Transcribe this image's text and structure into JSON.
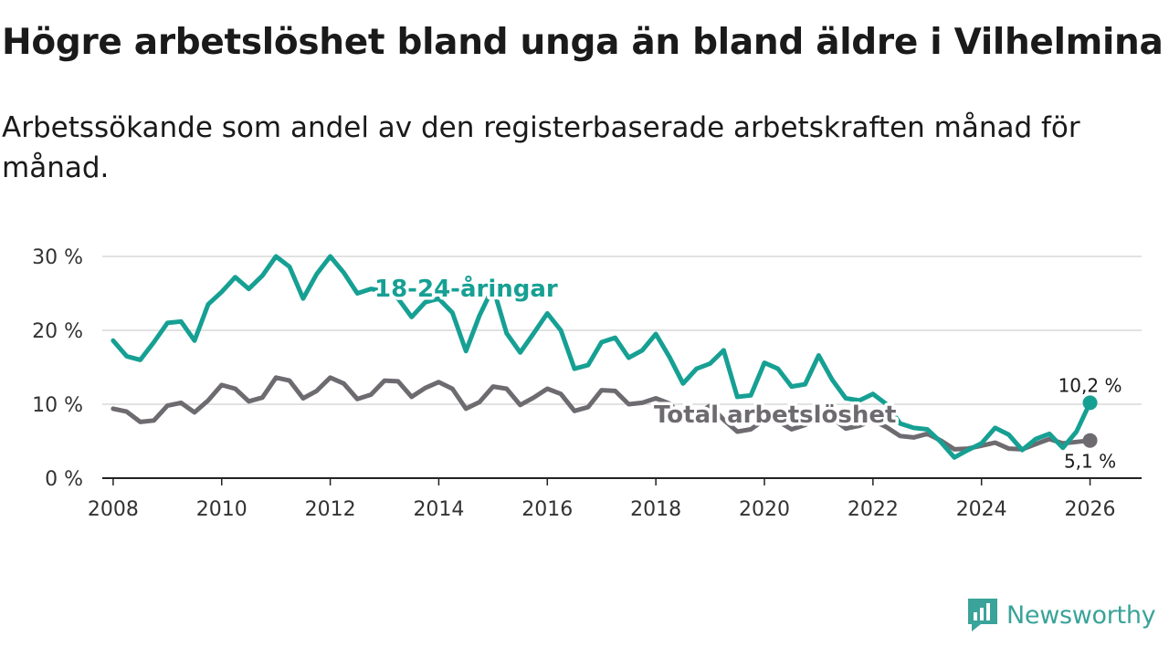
{
  "title": "Högre arbetslöshet bland unga än bland äldre i Vilhelmina",
  "subtitle": "Arbetssökande som andel av den registerbaserade arbetskraften månad för månad.",
  "brand": {
    "name": "Newsworthy",
    "color": "#3aa39a",
    "icon": "newsworthy-logo-icon"
  },
  "chart_data": {
    "type": "line",
    "title": "Högre arbetslöshet bland unga än bland äldre i Vilhelmina",
    "subtitle": "Arbetssökande som andel av den registerbaserade arbetskraften månad för månad.",
    "xlabel": "",
    "ylabel": "",
    "xlim": [
      2007.8,
      2026.95
    ],
    "ylim": [
      0,
      30
    ],
    "grid": true,
    "x_ticks": [
      {
        "value": 2008,
        "label": "2008"
      },
      {
        "value": 2010,
        "label": "2010"
      },
      {
        "value": 2012,
        "label": "2012"
      },
      {
        "value": 2014,
        "label": "2014"
      },
      {
        "value": 2016,
        "label": "2016"
      },
      {
        "value": 2018,
        "label": "2018"
      },
      {
        "value": 2020,
        "label": "2020"
      },
      {
        "value": 2022,
        "label": "2022"
      },
      {
        "value": 2024,
        "label": "2024"
      },
      {
        "value": 2026,
        "label": "2026"
      }
    ],
    "y_ticks": [
      {
        "value": 0,
        "label": "0 %"
      },
      {
        "value": 10,
        "label": "10 %"
      },
      {
        "value": 20,
        "label": "20 %"
      },
      {
        "value": 30,
        "label": "30 %"
      }
    ],
    "series": [
      {
        "name": "Total arbetslöshet",
        "label": "Total arbetslöshet",
        "color": "#6e6b70",
        "label_at": [
          2009.6,
          8.6
        ],
        "end_label": "5,1 %",
        "x": [
          2008.0,
          2008.25,
          2008.5,
          2008.75,
          2009.0,
          2009.25,
          2009.5,
          2009.75,
          2010.0,
          2010.25,
          2010.5,
          2010.75,
          2011.0,
          2011.25,
          2011.5,
          2011.75,
          2012.0,
          2012.25,
          2012.5,
          2012.75,
          2013.0,
          2013.25,
          2013.5,
          2013.75,
          2014.0,
          2014.25,
          2014.5,
          2014.75,
          2015.0,
          2015.25,
          2015.5,
          2015.75,
          2016.0,
          2016.25,
          2016.5,
          2016.75,
          2017.0,
          2017.25,
          2017.5,
          2017.75,
          2018.0,
          2018.25,
          2018.5,
          2018.75,
          2019.0,
          2019.25,
          2019.5,
          2019.75,
          2020.0,
          2020.25,
          2020.5,
          2020.75,
          2021.0,
          2021.25,
          2021.5,
          2021.75,
          2022.0,
          2022.25,
          2022.5,
          2022.75,
          2023.0,
          2023.25,
          2023.5,
          2023.75,
          2024.0,
          2024.25,
          2024.5,
          2024.75,
          2025.0,
          2025.25,
          2025.5,
          2025.75,
          2026.0
        ],
        "y": [
          9.4,
          9.0,
          7.6,
          7.8,
          9.8,
          10.2,
          8.9,
          10.5,
          12.6,
          12.1,
          10.4,
          10.9,
          13.6,
          13.2,
          10.8,
          11.8,
          13.6,
          12.8,
          10.7,
          11.3,
          13.2,
          13.1,
          11.0,
          12.2,
          13.0,
          12.1,
          9.4,
          10.3,
          12.4,
          12.1,
          9.9,
          10.9,
          12.1,
          11.4,
          9.1,
          9.6,
          11.9,
          11.8,
          10.0,
          10.2,
          10.8,
          10.1,
          8.2,
          8.7,
          9.8,
          7.9,
          6.3,
          6.6,
          7.9,
          7.7,
          6.6,
          7.2,
          8.3,
          8.1,
          6.7,
          7.1,
          7.8,
          6.9,
          5.7,
          5.5,
          6.0,
          5.1,
          3.9,
          4.0,
          4.4,
          4.8,
          4.0,
          3.9,
          4.6,
          5.3,
          4.7,
          4.9,
          5.1
        ]
      },
      {
        "name": "18-24-åringar",
        "label": "18-24-åringar",
        "color": "#16a093",
        "label_at": [
          2012.4,
          24.2
        ],
        "end_label": "10,2 %",
        "x": [
          2008.0,
          2008.25,
          2008.5,
          2008.75,
          2009.0,
          2009.25,
          2009.5,
          2009.75,
          2010.0,
          2010.25,
          2010.5,
          2010.75,
          2011.0,
          2011.25,
          2011.5,
          2011.75,
          2012.0,
          2012.25,
          2012.5,
          2012.75,
          2013.0,
          2013.25,
          2013.5,
          2013.75,
          2014.0,
          2014.25,
          2014.5,
          2014.75,
          2015.0,
          2015.25,
          2015.5,
          2015.75,
          2016.0,
          2016.25,
          2016.5,
          2016.75,
          2017.0,
          2017.25,
          2017.5,
          2017.75,
          2018.0,
          2018.25,
          2018.5,
          2018.75,
          2019.0,
          2019.25,
          2019.5,
          2019.75,
          2020.0,
          2020.25,
          2020.5,
          2020.75,
          2021.0,
          2021.25,
          2021.5,
          2021.75,
          2022.0,
          2022.25,
          2022.5,
          2022.75,
          2023.0,
          2023.25,
          2023.5,
          2023.75,
          2024.0,
          2024.25,
          2024.5,
          2024.75,
          2025.0,
          2025.25,
          2025.5,
          2025.75,
          2026.0
        ],
        "y": [
          18.6,
          16.5,
          16.0,
          18.4,
          21.0,
          21.2,
          18.6,
          23.5,
          25.2,
          27.2,
          25.6,
          27.4,
          30.0,
          28.6,
          24.3,
          27.6,
          30.0,
          27.8,
          25.0,
          25.6,
          25.3,
          24.3,
          21.8,
          23.8,
          24.3,
          22.4,
          17.2,
          22.0,
          25.8,
          19.6,
          17.0,
          19.6,
          22.3,
          20.0,
          14.8,
          15.3,
          18.4,
          19.0,
          16.3,
          17.3,
          19.5,
          16.4,
          12.8,
          14.8,
          15.5,
          17.3,
          11.0,
          11.2,
          15.6,
          14.8,
          12.4,
          12.7,
          16.6,
          13.3,
          10.8,
          10.5,
          11.4,
          10.0,
          7.4,
          6.8,
          6.6,
          4.9,
          2.8,
          3.8,
          4.7,
          6.8,
          5.9,
          3.8,
          5.3,
          6.0,
          4.1,
          6.3,
          10.2
        ]
      }
    ]
  }
}
